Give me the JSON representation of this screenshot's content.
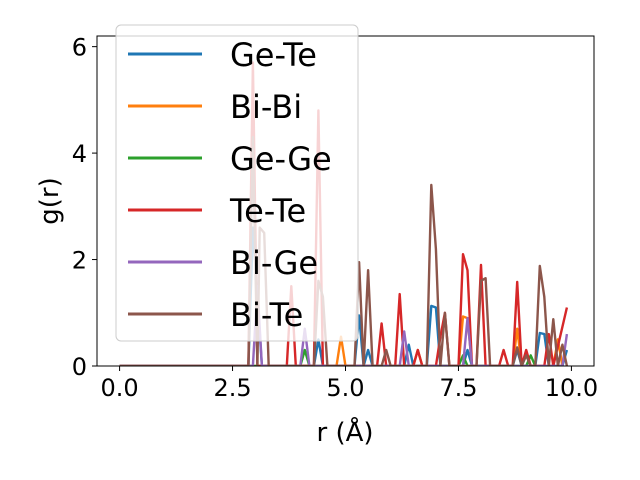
{
  "chart_data": {
    "type": "line",
    "xlabel": "r (Å)",
    "ylabel": "g(r)",
    "xlim": [
      -0.5,
      10.5
    ],
    "ylim": [
      0,
      6.2
    ],
    "x_ticks": [
      "0.0",
      "2.5",
      "5.0",
      "7.5",
      "10.0"
    ],
    "x_tick_values": [
      0,
      2.5,
      5,
      7.5,
      10
    ],
    "y_ticks": [
      "0",
      "2",
      "4",
      "6"
    ],
    "y_tick_values": [
      0,
      2,
      4,
      6
    ],
    "grid": false,
    "legend_position": "upper-left",
    "series": [
      {
        "name": "Ge-Te",
        "color": "#1f77b4",
        "points": [
          [
            0,
            0
          ],
          [
            2.85,
            0
          ],
          [
            2.95,
            2.6
          ],
          [
            3.05,
            1.3
          ],
          [
            3.15,
            0
          ],
          [
            4.3,
            0
          ],
          [
            4.4,
            0.5
          ],
          [
            4.5,
            0
          ],
          [
            5.2,
            0
          ],
          [
            5.3,
            0.95
          ],
          [
            5.4,
            0
          ],
          [
            5.5,
            0.3
          ],
          [
            5.6,
            0
          ],
          [
            6.3,
            0
          ],
          [
            6.4,
            0.4
          ],
          [
            6.5,
            0
          ],
          [
            6.8,
            0
          ],
          [
            6.9,
            1.13
          ],
          [
            7.0,
            1.1
          ],
          [
            7.1,
            0
          ],
          [
            7.6,
            0
          ],
          [
            7.7,
            0.3
          ],
          [
            7.8,
            0
          ],
          [
            8.7,
            0
          ],
          [
            8.8,
            0.3
          ],
          [
            8.9,
            0
          ],
          [
            9.2,
            0
          ],
          [
            9.3,
            0.62
          ],
          [
            9.4,
            0.6
          ],
          [
            9.5,
            0
          ],
          [
            9.8,
            0
          ],
          [
            9.9,
            0.3
          ]
        ]
      },
      {
        "name": "Bi-Bi",
        "color": "#ff7f0e",
        "points": [
          [
            0,
            0
          ],
          [
            4.8,
            0
          ],
          [
            4.9,
            0.55
          ],
          [
            5.0,
            0
          ],
          [
            6.5,
            0
          ],
          [
            6.6,
            0.3
          ],
          [
            6.7,
            0
          ],
          [
            7.5,
            0
          ],
          [
            7.6,
            0.93
          ],
          [
            7.7,
            0.9
          ],
          [
            7.8,
            0
          ],
          [
            8.7,
            0
          ],
          [
            8.8,
            0.7
          ],
          [
            8.9,
            0
          ],
          [
            9.6,
            0
          ],
          [
            9.7,
            0.5
          ],
          [
            9.8,
            0
          ]
        ]
      },
      {
        "name": "Ge-Ge",
        "color": "#2ca02c",
        "points": [
          [
            0,
            0
          ],
          [
            4.0,
            0
          ],
          [
            4.1,
            0.3
          ],
          [
            4.2,
            0
          ],
          [
            7.5,
            0
          ],
          [
            7.6,
            0.2
          ],
          [
            7.7,
            0
          ],
          [
            9.0,
            0
          ],
          [
            9.1,
            0.2
          ],
          [
            9.2,
            0
          ]
        ]
      },
      {
        "name": "Te-Te",
        "color": "#d62728",
        "points": [
          [
            0,
            0
          ],
          [
            2.85,
            0
          ],
          [
            2.95,
            5.7
          ],
          [
            3.05,
            0
          ],
          [
            3.7,
            0
          ],
          [
            3.8,
            1.5
          ],
          [
            3.9,
            0
          ],
          [
            4.3,
            0
          ],
          [
            4.4,
            4.8
          ],
          [
            4.5,
            0
          ],
          [
            5.7,
            0
          ],
          [
            5.8,
            0.8
          ],
          [
            5.9,
            0
          ],
          [
            6.1,
            0
          ],
          [
            6.2,
            1.35
          ],
          [
            6.3,
            0
          ],
          [
            6.5,
            0
          ],
          [
            6.6,
            0.3
          ],
          [
            6.7,
            0
          ],
          [
            7.0,
            0
          ],
          [
            7.1,
            0.55
          ],
          [
            7.2,
            1.0
          ],
          [
            7.3,
            0
          ],
          [
            7.5,
            0
          ],
          [
            7.6,
            2.1
          ],
          [
            7.7,
            1.8
          ],
          [
            7.8,
            0
          ],
          [
            7.9,
            0
          ],
          [
            8.0,
            1.9
          ],
          [
            8.1,
            0
          ],
          [
            8.4,
            0
          ],
          [
            8.5,
            0.3
          ],
          [
            8.6,
            0
          ],
          [
            8.7,
            0
          ],
          [
            8.8,
            1.58
          ],
          [
            8.9,
            0
          ],
          [
            9.0,
            0.3
          ],
          [
            9.1,
            0
          ],
          [
            9.4,
            0
          ],
          [
            9.5,
            0.6
          ],
          [
            9.6,
            0
          ],
          [
            9.9,
            1.1
          ]
        ]
      },
      {
        "name": "Bi-Ge",
        "color": "#9467bd",
        "points": [
          [
            0,
            0
          ],
          [
            2.95,
            0
          ],
          [
            3.05,
            1.5
          ],
          [
            3.15,
            0
          ],
          [
            4.0,
            0
          ],
          [
            4.1,
            0.7
          ],
          [
            4.2,
            0
          ],
          [
            6.2,
            0
          ],
          [
            6.3,
            0.65
          ],
          [
            6.4,
            0
          ],
          [
            7.6,
            0
          ],
          [
            7.7,
            0.9
          ],
          [
            7.8,
            0
          ],
          [
            9.8,
            0
          ],
          [
            9.9,
            0.6
          ]
        ]
      },
      {
        "name": "Bi-Te",
        "color": "#8c564b",
        "points": [
          [
            0,
            0
          ],
          [
            2.85,
            0
          ],
          [
            2.95,
            4.3
          ],
          [
            3.05,
            0
          ],
          [
            3.1,
            2.6
          ],
          [
            3.2,
            2.5
          ],
          [
            3.3,
            0
          ],
          [
            4.3,
            0
          ],
          [
            4.4,
            1.6
          ],
          [
            4.5,
            1.3
          ],
          [
            4.6,
            0
          ],
          [
            5.2,
            0
          ],
          [
            5.3,
            1.95
          ],
          [
            5.4,
            0
          ],
          [
            5.5,
            1.8
          ],
          [
            5.6,
            0
          ],
          [
            5.8,
            0
          ],
          [
            5.9,
            0.3
          ],
          [
            6.0,
            0
          ],
          [
            6.8,
            0
          ],
          [
            6.9,
            3.4
          ],
          [
            7.0,
            2.2
          ],
          [
            7.1,
            0
          ],
          [
            7.2,
            1.0
          ],
          [
            7.3,
            0
          ],
          [
            7.9,
            0
          ],
          [
            8.0,
            1.6
          ],
          [
            8.1,
            1.65
          ],
          [
            8.2,
            0
          ],
          [
            8.7,
            0
          ],
          [
            8.8,
            0.35
          ],
          [
            8.9,
            0
          ],
          [
            9.0,
            0.2
          ],
          [
            9.1,
            0
          ],
          [
            9.2,
            0
          ],
          [
            9.3,
            1.88
          ],
          [
            9.4,
            1.3
          ],
          [
            9.5,
            0
          ],
          [
            9.6,
            0.88
          ],
          [
            9.7,
            0
          ],
          [
            9.8,
            0.4
          ],
          [
            9.9,
            0
          ]
        ]
      }
    ]
  }
}
